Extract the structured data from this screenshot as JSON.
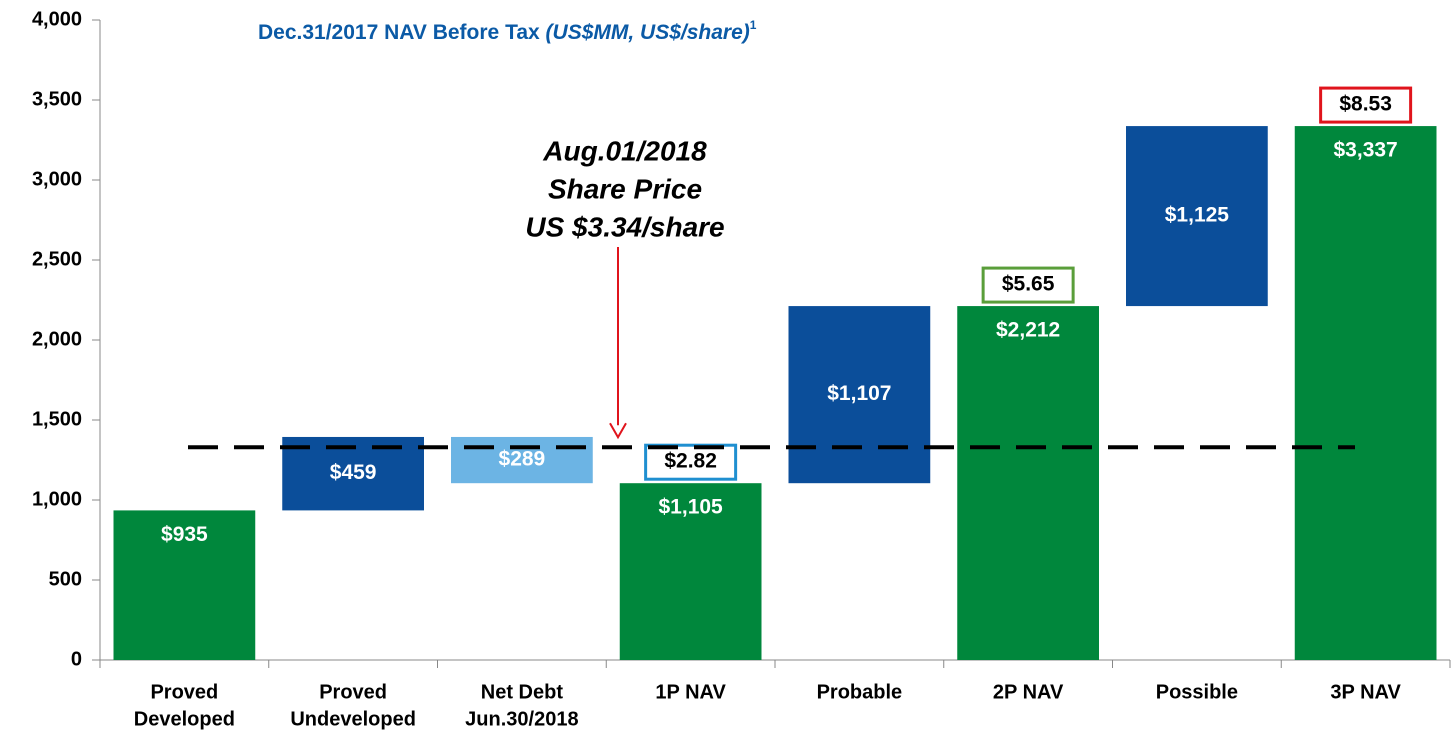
{
  "chart_data": {
    "type": "waterfall",
    "title": "Dec.31/2017 NAV Before Tax",
    "title_units": "(US$MM, US$/share)",
    "title_note": "1",
    "categories": [
      [
        "Proved",
        "Developed"
      ],
      [
        "Proved",
        "Undeveloped"
      ],
      [
        "Net Debt",
        "Jun.30/2018"
      ],
      [
        "1P NAV"
      ],
      [
        "Probable"
      ],
      [
        "2P NAV"
      ],
      [
        "Possible"
      ],
      [
        "3P NAV"
      ]
    ],
    "values": [
      935,
      459,
      289,
      1105,
      1107,
      2212,
      1125,
      3337
    ],
    "value_labels": [
      "$935",
      "$459",
      "$289",
      "$1,105",
      "$1,107",
      "$2,212",
      "$1,125",
      "$3,337"
    ],
    "kinds": [
      "total",
      "increase",
      "decrease",
      "total",
      "increase",
      "total",
      "increase",
      "total"
    ],
    "colors": {
      "total": "#00873c",
      "increase": "#0b4e9a",
      "decrease": "#6cb4e4"
    },
    "per_share": [
      null,
      null,
      null,
      2.82,
      null,
      5.65,
      null,
      8.53
    ],
    "per_share_labels": [
      null,
      null,
      null,
      "$2.82",
      null,
      "$5.65",
      null,
      "$8.53"
    ],
    "per_share_colors": [
      null,
      null,
      null,
      "#1f8fd0",
      null,
      "#5a9e3a",
      null,
      "#e0141c"
    ],
    "reference_line": {
      "value": 1330,
      "color": "#000000",
      "dashed": true
    },
    "annotation": {
      "lines": [
        "Aug.01/2018",
        "Share Price",
        "US $3.34/share"
      ],
      "arrow_color": "#e0141c"
    },
    "ylim": [
      0,
      4000
    ],
    "yticks": [
      0,
      500,
      {
        "value": 1000,
        "label": "1,000"
      },
      {
        "value": 1500,
        "label": "1,500"
      },
      {
        "value": 2000,
        "label": "2,000"
      },
      {
        "value": 2500,
        "label": "2,500"
      },
      {
        "value": 3000,
        "label": "3,000"
      },
      {
        "value": 3500,
        "label": "3,500"
      },
      {
        "value": 4000,
        "label": "4,000"
      }
    ]
  }
}
